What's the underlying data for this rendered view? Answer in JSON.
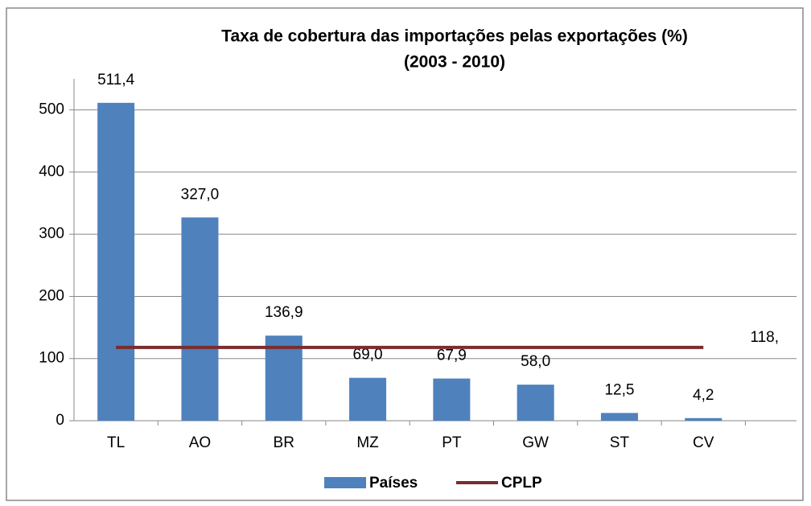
{
  "chart_data": {
    "type": "bar",
    "title": "Taxa de cobertura das importações pelas exportações (%)",
    "subtitle": "(2003 - 2010)",
    "categories": [
      "TL",
      "AO",
      "BR",
      "MZ",
      "PT",
      "GW",
      "ST",
      "CV"
    ],
    "series": [
      {
        "name": "Países",
        "type": "bar",
        "color": "#4f81bd",
        "values": [
          511.4,
          327.0,
          136.9,
          69.0,
          67.9,
          58.0,
          12.5,
          4.2
        ],
        "value_labels": [
          "511,4",
          "327,0",
          "136,9",
          "69,0",
          "67,9",
          "58,0",
          "12,5",
          "4,2"
        ]
      },
      {
        "name": "CPLP",
        "type": "line",
        "color": "#7b2c2c",
        "values": [
          118,
          118,
          118,
          118,
          118,
          118,
          118,
          118
        ],
        "value_labels": [
          null,
          null,
          null,
          null,
          null,
          null,
          null,
          "118,"
        ]
      }
    ],
    "ylim": [
      0,
      550
    ],
    "yticks": [
      0,
      100,
      200,
      300,
      400,
      500
    ],
    "grid": true,
    "legend": "bottom"
  }
}
